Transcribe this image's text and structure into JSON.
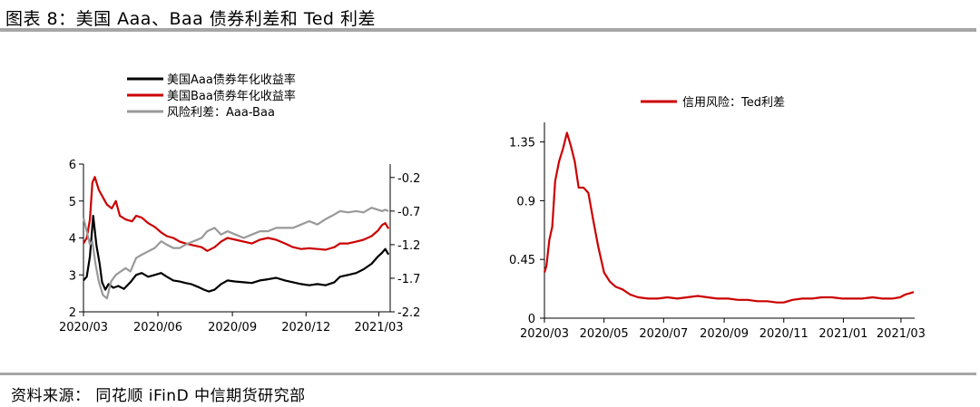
{
  "figure": {
    "title": "图表 8：美国 Aaa、Baa 债券利差和 Ted 利差",
    "source": "资料来源：  同花顺 iFinD 中信期货研究部"
  },
  "chart_data": [
    {
      "type": "line",
      "x_tick_labels": [
        "2020/03",
        "2020/06",
        "2020/09",
        "2020/12",
        "2021/03"
      ],
      "x_tick_dates": [
        "2020-03-01",
        "2020-06-01",
        "2020-09-01",
        "2020-12-01",
        "2021-03-01"
      ],
      "xlim": [
        "2020-03-01",
        "2021-03-15"
      ],
      "left_axis": {
        "ylim": [
          2,
          6
        ],
        "ticks": [
          2,
          3,
          4,
          5,
          6
        ],
        "tick_labels": [
          "2",
          "3",
          "4",
          "5",
          "6"
        ]
      },
      "right_axis": {
        "ylim": [
          -2.2,
          0
        ],
        "ticks": [
          -2.2,
          -1.7,
          -1.2,
          -0.7,
          -0.2
        ],
        "tick_labels": [
          "-2.2",
          "-1.7",
          "-1.2",
          "-0.7",
          "-0.2"
        ]
      },
      "legend_position": "top",
      "series": [
        {
          "name": "美国Aaa债券年化收益率",
          "axis": "left",
          "color": "#000000",
          "points": [
            [
              "2020-03-01",
              2.85
            ],
            [
              "2020-03-05",
              2.95
            ],
            [
              "2020-03-09",
              3.5
            ],
            [
              "2020-03-13",
              4.6
            ],
            [
              "2020-03-17",
              3.8
            ],
            [
              "2020-03-21",
              3.3
            ],
            [
              "2020-03-24",
              2.8
            ],
            [
              "2020-03-28",
              2.6
            ],
            [
              "2020-04-01",
              2.75
            ],
            [
              "2020-04-07",
              2.65
            ],
            [
              "2020-04-13",
              2.7
            ],
            [
              "2020-04-20",
              2.62
            ],
            [
              "2020-04-28",
              2.8
            ],
            [
              "2020-05-05",
              3.0
            ],
            [
              "2020-05-12",
              3.05
            ],
            [
              "2020-05-20",
              2.95
            ],
            [
              "2020-05-28",
              3.0
            ],
            [
              "2020-06-05",
              3.05
            ],
            [
              "2020-06-12",
              2.95
            ],
            [
              "2020-06-20",
              2.85
            ],
            [
              "2020-06-28",
              2.82
            ],
            [
              "2020-07-05",
              2.78
            ],
            [
              "2020-07-12",
              2.75
            ],
            [
              "2020-07-20",
              2.68
            ],
            [
              "2020-07-28",
              2.6
            ],
            [
              "2020-08-03",
              2.55
            ],
            [
              "2020-08-10",
              2.6
            ],
            [
              "2020-08-18",
              2.75
            ],
            [
              "2020-08-26",
              2.85
            ],
            [
              "2020-09-05",
              2.82
            ],
            [
              "2020-09-15",
              2.8
            ],
            [
              "2020-09-25",
              2.78
            ],
            [
              "2020-10-05",
              2.85
            ],
            [
              "2020-10-15",
              2.88
            ],
            [
              "2020-10-25",
              2.92
            ],
            [
              "2020-11-05",
              2.85
            ],
            [
              "2020-11-15",
              2.8
            ],
            [
              "2020-11-25",
              2.75
            ],
            [
              "2020-12-05",
              2.72
            ],
            [
              "2020-12-15",
              2.75
            ],
            [
              "2020-12-25",
              2.72
            ],
            [
              "2021-01-05",
              2.8
            ],
            [
              "2021-01-12",
              2.95
            ],
            [
              "2021-01-22",
              3.0
            ],
            [
              "2021-02-01",
              3.05
            ],
            [
              "2021-02-10",
              3.15
            ],
            [
              "2021-02-20",
              3.3
            ],
            [
              "2021-02-28",
              3.5
            ],
            [
              "2021-03-05",
              3.6
            ],
            [
              "2021-03-09",
              3.7
            ],
            [
              "2021-03-13",
              3.55
            ]
          ]
        },
        {
          "name": "美国Baa债券年化收益率",
          "axis": "left",
          "color": "#cc0000",
          "points": [
            [
              "2020-03-01",
              3.85
            ],
            [
              "2020-03-05",
              4.0
            ],
            [
              "2020-03-09",
              4.5
            ],
            [
              "2020-03-12",
              5.5
            ],
            [
              "2020-03-15",
              5.65
            ],
            [
              "2020-03-20",
              5.3
            ],
            [
              "2020-03-25",
              5.1
            ],
            [
              "2020-03-30",
              4.9
            ],
            [
              "2020-04-05",
              4.8
            ],
            [
              "2020-04-10",
              5.0
            ],
            [
              "2020-04-15",
              4.6
            ],
            [
              "2020-04-22",
              4.5
            ],
            [
              "2020-04-30",
              4.45
            ],
            [
              "2020-05-05",
              4.6
            ],
            [
              "2020-05-12",
              4.55
            ],
            [
              "2020-05-20",
              4.4
            ],
            [
              "2020-05-28",
              4.3
            ],
            [
              "2020-06-05",
              4.15
            ],
            [
              "2020-06-12",
              4.05
            ],
            [
              "2020-06-20",
              4.0
            ],
            [
              "2020-06-28",
              3.9
            ],
            [
              "2020-07-05",
              3.85
            ],
            [
              "2020-07-15",
              3.8
            ],
            [
              "2020-07-25",
              3.75
            ],
            [
              "2020-08-01",
              3.65
            ],
            [
              "2020-08-10",
              3.75
            ],
            [
              "2020-08-18",
              3.9
            ],
            [
              "2020-08-26",
              4.0
            ],
            [
              "2020-09-05",
              3.95
            ],
            [
              "2020-09-15",
              3.9
            ],
            [
              "2020-09-25",
              3.85
            ],
            [
              "2020-10-05",
              3.95
            ],
            [
              "2020-10-15",
              4.0
            ],
            [
              "2020-10-25",
              3.95
            ],
            [
              "2020-11-05",
              3.85
            ],
            [
              "2020-11-15",
              3.75
            ],
            [
              "2020-11-25",
              3.7
            ],
            [
              "2020-12-05",
              3.72
            ],
            [
              "2020-12-15",
              3.7
            ],
            [
              "2020-12-25",
              3.68
            ],
            [
              "2021-01-05",
              3.75
            ],
            [
              "2021-01-12",
              3.85
            ],
            [
              "2021-01-22",
              3.85
            ],
            [
              "2021-02-01",
              3.9
            ],
            [
              "2021-02-10",
              3.95
            ],
            [
              "2021-02-20",
              4.05
            ],
            [
              "2021-02-28",
              4.2
            ],
            [
              "2021-03-05",
              4.35
            ],
            [
              "2021-03-09",
              4.4
            ],
            [
              "2021-03-13",
              4.25
            ]
          ]
        },
        {
          "name": "风险利差：Aaa-Baa",
          "axis": "right",
          "color": "#999999",
          "points": [
            [
              "2020-03-01",
              -0.8
            ],
            [
              "2020-03-05",
              -1.0
            ],
            [
              "2020-03-09",
              -1.2
            ],
            [
              "2020-03-12",
              -1.15
            ],
            [
              "2020-03-16",
              -1.5
            ],
            [
              "2020-03-20",
              -1.75
            ],
            [
              "2020-03-25",
              -1.95
            ],
            [
              "2020-03-30",
              -2.0
            ],
            [
              "2020-04-04",
              -1.75
            ],
            [
              "2020-04-10",
              -1.65
            ],
            [
              "2020-04-16",
              -1.6
            ],
            [
              "2020-04-22",
              -1.55
            ],
            [
              "2020-04-28",
              -1.6
            ],
            [
              "2020-05-05",
              -1.4
            ],
            [
              "2020-05-12",
              -1.35
            ],
            [
              "2020-05-20",
              -1.3
            ],
            [
              "2020-05-28",
              -1.25
            ],
            [
              "2020-06-05",
              -1.15
            ],
            [
              "2020-06-12",
              -1.2
            ],
            [
              "2020-06-20",
              -1.25
            ],
            [
              "2020-06-28",
              -1.25
            ],
            [
              "2020-07-05",
              -1.2
            ],
            [
              "2020-07-15",
              -1.15
            ],
            [
              "2020-07-25",
              -1.1
            ],
            [
              "2020-08-01",
              -1.0
            ],
            [
              "2020-08-10",
              -0.95
            ],
            [
              "2020-08-18",
              -1.05
            ],
            [
              "2020-08-26",
              -1.0
            ],
            [
              "2020-09-05",
              -1.05
            ],
            [
              "2020-09-15",
              -1.1
            ],
            [
              "2020-09-25",
              -1.05
            ],
            [
              "2020-10-05",
              -1.0
            ],
            [
              "2020-10-15",
              -1.0
            ],
            [
              "2020-10-25",
              -0.95
            ],
            [
              "2020-11-05",
              -0.95
            ],
            [
              "2020-11-15",
              -0.95
            ],
            [
              "2020-11-25",
              -0.9
            ],
            [
              "2020-12-05",
              -0.85
            ],
            [
              "2020-12-15",
              -0.9
            ],
            [
              "2020-12-25",
              -0.82
            ],
            [
              "2021-01-05",
              -0.75
            ],
            [
              "2021-01-12",
              -0.7
            ],
            [
              "2021-01-22",
              -0.72
            ],
            [
              "2021-02-01",
              -0.7
            ],
            [
              "2021-02-10",
              -0.72
            ],
            [
              "2021-02-20",
              -0.65
            ],
            [
              "2021-02-28",
              -0.68
            ],
            [
              "2021-03-05",
              -0.7
            ],
            [
              "2021-03-09",
              -0.68
            ],
            [
              "2021-03-13",
              -0.7
            ]
          ]
        }
      ]
    },
    {
      "type": "line",
      "x_tick_labels": [
        "2020/03",
        "2020/05",
        "2020/07",
        "2020/09",
        "2020/11",
        "2021/01",
        "2021/03"
      ],
      "x_tick_dates": [
        "2020-03-01",
        "2020-05-01",
        "2020-07-01",
        "2020-09-01",
        "2020-11-01",
        "2021-01-01",
        "2021-03-01"
      ],
      "xlim": [
        "2020-03-01",
        "2021-03-15"
      ],
      "ylim": [
        0,
        1.5
      ],
      "y_ticks": [
        0,
        0.45,
        0.9,
        1.35
      ],
      "y_tick_labels": [
        "0",
        "0.45",
        "0.9",
        "1.35"
      ],
      "legend_position": "top",
      "series": [
        {
          "name": "信用风险：Ted利差",
          "color": "#cc0000",
          "points": [
            [
              "2020-03-01",
              0.35
            ],
            [
              "2020-03-03",
              0.4
            ],
            [
              "2020-03-06",
              0.6
            ],
            [
              "2020-03-09",
              0.7
            ],
            [
              "2020-03-12",
              1.05
            ],
            [
              "2020-03-16",
              1.2
            ],
            [
              "2020-03-20",
              1.3
            ],
            [
              "2020-03-24",
              1.42
            ],
            [
              "2020-03-28",
              1.32
            ],
            [
              "2020-04-01",
              1.2
            ],
            [
              "2020-04-05",
              1.0
            ],
            [
              "2020-04-10",
              1.0
            ],
            [
              "2020-04-15",
              0.96
            ],
            [
              "2020-04-20",
              0.75
            ],
            [
              "2020-04-25",
              0.55
            ],
            [
              "2020-05-01",
              0.35
            ],
            [
              "2020-05-07",
              0.28
            ],
            [
              "2020-05-13",
              0.24
            ],
            [
              "2020-05-20",
              0.22
            ],
            [
              "2020-05-28",
              0.18
            ],
            [
              "2020-06-05",
              0.16
            ],
            [
              "2020-06-15",
              0.15
            ],
            [
              "2020-06-25",
              0.15
            ],
            [
              "2020-07-05",
              0.16
            ],
            [
              "2020-07-15",
              0.15
            ],
            [
              "2020-07-25",
              0.16
            ],
            [
              "2020-08-05",
              0.17
            ],
            [
              "2020-08-15",
              0.16
            ],
            [
              "2020-08-25",
              0.15
            ],
            [
              "2020-09-05",
              0.15
            ],
            [
              "2020-09-15",
              0.14
            ],
            [
              "2020-09-25",
              0.14
            ],
            [
              "2020-10-05",
              0.13
            ],
            [
              "2020-10-15",
              0.13
            ],
            [
              "2020-10-25",
              0.12
            ],
            [
              "2020-11-01",
              0.12
            ],
            [
              "2020-11-10",
              0.14
            ],
            [
              "2020-11-20",
              0.15
            ],
            [
              "2020-11-30",
              0.15
            ],
            [
              "2020-12-10",
              0.16
            ],
            [
              "2020-12-20",
              0.16
            ],
            [
              "2020-12-31",
              0.15
            ],
            [
              "2021-01-10",
              0.15
            ],
            [
              "2021-01-20",
              0.15
            ],
            [
              "2021-01-31",
              0.16
            ],
            [
              "2021-02-10",
              0.15
            ],
            [
              "2021-02-20",
              0.15
            ],
            [
              "2021-02-28",
              0.16
            ],
            [
              "2021-03-05",
              0.18
            ],
            [
              "2021-03-10",
              0.19
            ],
            [
              "2021-03-14",
              0.2
            ]
          ]
        }
      ]
    }
  ]
}
